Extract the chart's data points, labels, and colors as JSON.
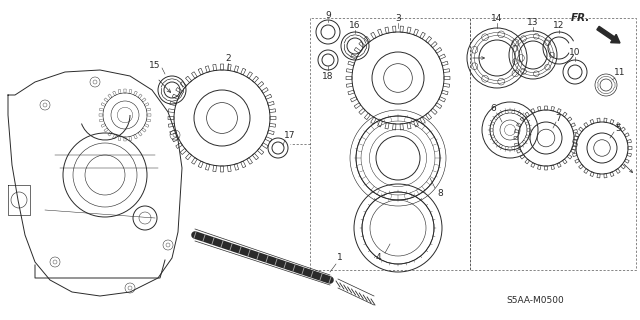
{
  "background_color": "#f5f5f0",
  "line_color": "#2a2a2a",
  "diagram_code": "S5AA-M0500",
  "fr_label": "FR.",
  "part_labels": {
    "1": [
      310,
      272,
      330,
      285
    ],
    "2": [
      218,
      88,
      228,
      60
    ],
    "3": [
      390,
      68,
      400,
      30
    ],
    "4": [
      385,
      248,
      375,
      265
    ],
    "5": [
      603,
      148,
      618,
      132
    ],
    "6": [
      508,
      145,
      497,
      128
    ],
    "7": [
      548,
      153,
      558,
      138
    ],
    "8": [
      413,
      188,
      430,
      198
    ],
    "9": [
      328,
      32,
      328,
      15
    ],
    "10": [
      575,
      88,
      575,
      72
    ],
    "11": [
      607,
      98,
      618,
      85
    ],
    "12": [
      556,
      55,
      556,
      38
    ],
    "13": [
      530,
      42,
      530,
      22
    ],
    "14": [
      497,
      38,
      497,
      18
    ],
    "15": [
      172,
      82,
      160,
      62
    ],
    "16": [
      352,
      48,
      352,
      28
    ],
    "17": [
      279,
      148,
      292,
      138
    ],
    "18": [
      332,
      68,
      332,
      82
    ]
  }
}
